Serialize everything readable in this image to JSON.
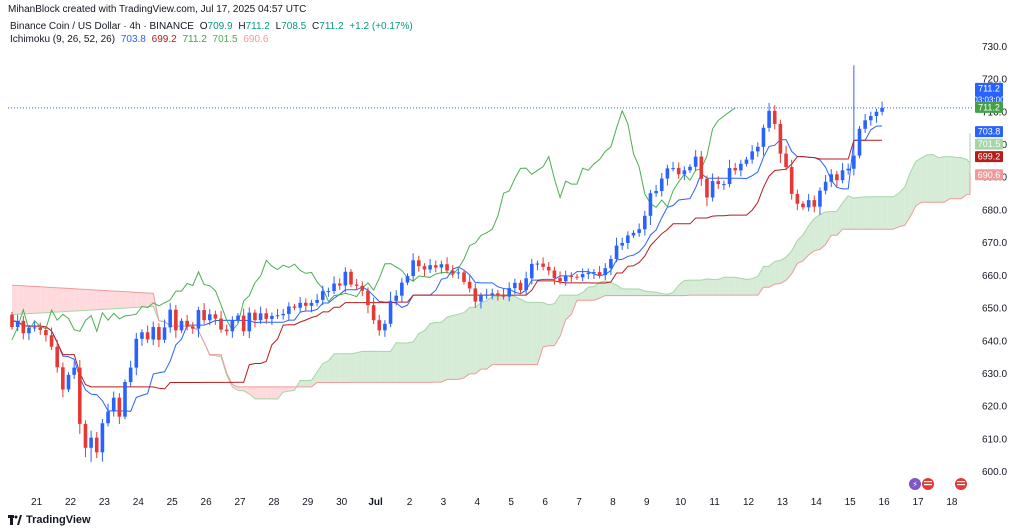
{
  "header": {
    "credit": "MihanBlock created with TradingView.com, Jul 17, 2025 04:57 UTC",
    "symbol": "Binance Coin / US Dollar · 4h · BINANCE",
    "ohlc": {
      "o_label": "O",
      "open": "709.9",
      "h_label": "H",
      "high": "711.2",
      "l_label": "L",
      "low": "708.5",
      "c_label": "C",
      "close": "711.2",
      "change": "+1.2 (+0.17%)"
    },
    "indicator": "Ichimoku (9, 26, 52, 26)",
    "indicator_values": {
      "conversion": "703.8",
      "base": "699.2",
      "lagging": "711.2",
      "span_a": "701.5",
      "span_b": "690.6"
    }
  },
  "footer": {
    "brand": "TradingView"
  },
  "colors": {
    "up": "#2962ff",
    "down": "#e53935",
    "conversion": "#2962ff",
    "base": "#b71c1c",
    "lagging": "#4caf50",
    "cloud_bull": "#c8e6c9",
    "cloud_bear": "#ffcdd2",
    "span_a": "#a5d6a7",
    "span_b": "#ef9a9a"
  },
  "chart_data": {
    "type": "candlestick",
    "title": "Binance Coin / US Dollar · 4h · BINANCE",
    "ylim": [
      595,
      735
    ],
    "y_ticks": [
      600,
      610,
      620,
      630,
      640,
      650,
      660,
      670,
      680,
      690,
      700,
      710,
      720,
      730
    ],
    "y_tick_labels": [
      "600.0",
      "610.0",
      "620.0",
      "630.0",
      "640.0",
      "650.0",
      "660.0",
      "670.0",
      "680.0",
      "690.0",
      "700.0",
      "710.0",
      "720.0",
      "730.0"
    ],
    "x_tick_labels": [
      "21",
      "22",
      "23",
      "24",
      "25",
      "26",
      "27",
      "28",
      "29",
      "30",
      "Jul",
      "2",
      "3",
      "4",
      "5",
      "6",
      "7",
      "8",
      "9",
      "10",
      "11",
      "12",
      "13",
      "14",
      "15",
      "16",
      "17",
      "18"
    ],
    "price_labels": [
      {
        "value": 711.2,
        "text": "711.2",
        "sub": "03:03:00",
        "color": "#2962ff"
      },
      {
        "value": 711.2,
        "text": "711.2",
        "color": "#43a047"
      },
      {
        "value": 703.8,
        "text": "703.8",
        "color": "#2962ff"
      },
      {
        "value": 701.5,
        "text": "701.5",
        "color": "#a5d6a7"
      },
      {
        "value": 699.2,
        "text": "699.2",
        "color": "#b71c1c"
      },
      {
        "value": 690.6,
        "text": "690.6",
        "color": "#ef9a9a"
      }
    ],
    "current_price": 711.2,
    "candles_per_day": 6,
    "candle_count": 159,
    "series": [
      {
        "name": "close",
        "start": 648,
        "values": [
          644.2,
          646.1,
          642.3,
          643.9,
          644.1,
          643.3,
          641.7,
          638.2,
          631.9,
          625.1,
          629.6,
          631.8,
          614.6,
          607.3,
          610.4,
          605.9,
          614.8,
          618.4,
          622.6,
          616.8,
          627.4,
          631.8,
          640.6,
          642.6,
          640.4,
          644.2,
          640.3,
          644.1,
          649.5,
          643.2,
          646.1,
          644.4,
          643.7,
          649.4,
          646.3,
          648.1,
          646.8,
          643.4,
          642.9,
          646.2,
          647.7,
          642.9,
          648.6,
          646.3,
          648.4,
          646.7,
          647.6,
          647.8,
          648.2,
          650.5,
          650.1,
          651.6,
          650.7,
          651.6,
          652.5,
          655.2,
          655.2,
          657.5,
          656.9,
          661.1,
          657.2,
          656.8,
          655.3,
          650.9,
          646.3,
          643.2,
          645.2,
          652.2,
          653.8,
          657.8,
          659.8,
          664.6,
          662.8,
          661.8,
          663.1,
          662.4,
          663.4,
          661.5,
          660.6,
          660.9,
          658.0,
          656.0,
          652.0,
          653.8,
          654.1,
          654.5,
          654.1,
          653.5,
          656.1,
          657.7,
          655.5,
          659.1,
          663.5,
          663.6,
          662.6,
          661.5,
          659.2,
          658.2,
          659.8,
          659.6,
          659.4,
          660.4,
          660.8,
          661.0,
          660.1,
          662.2,
          665.0,
          669.1,
          669.9,
          672.2,
          673.0,
          674.1,
          678.2,
          685.1,
          685.8,
          689.6,
          692.7,
          692.8,
          690.9,
          692.1,
          693.2,
          696.3,
          689.5,
          683.8,
          688.8,
          687.9,
          687.9,
          692.8,
          692.1,
          694.1,
          695.4,
          697.9,
          699.3,
          705.1,
          710.3,
          706.3,
          697.2,
          693.1,
          684.9,
          681.9,
          680.8,
          683.0,
          681.0,
          685.9,
          688.6,
          690.9,
          689.1,
          692.1,
          692.6,
          696.6,
          704.8,
          707.4,
          708.7,
          710.0,
          711.2
        ]
      },
      {
        "name": "conversion",
        "approx": "computed 9-period midpoint"
      },
      {
        "name": "base",
        "approx": "computed 26-period midpoint"
      }
    ]
  }
}
